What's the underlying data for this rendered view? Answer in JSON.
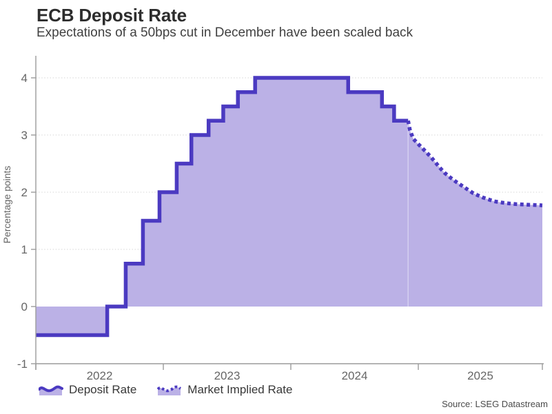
{
  "chart_data": {
    "type": "area",
    "title": "ECB Deposit Rate",
    "subtitle": "Expectations of a 50bps cut in December have been scaled back",
    "ylabel": "Percentage points",
    "source": "Source: LSEG Datastream",
    "x_range": [
      2022.0,
      2025.973
    ],
    "ylim": [
      -1,
      4.38
    ],
    "ytick_values": [
      -1,
      0,
      1,
      2,
      3,
      4
    ],
    "ytick_labels": [
      "-1",
      "0",
      "1",
      "2",
      "3",
      "4"
    ],
    "grid_ticks": [
      1,
      2,
      3,
      4
    ],
    "xtick_values": [
      2022,
      2023,
      2024,
      2025,
      2025.973
    ],
    "xlabels": [
      "2022",
      "2023",
      "2024",
      "2025"
    ],
    "legend_position": "bottom-left",
    "grid": "dotted-horizontal",
    "colors": {
      "line": "#4b3ac1",
      "fill": "#bbb1e6",
      "grid": "#d6d6d6",
      "axis": "#9b9b9b",
      "tick_text": "#666666"
    },
    "series": [
      {
        "name": "Deposit Rate",
        "line_style": "solid",
        "interpolation": "step-after",
        "points": [
          [
            2022.0,
            -0.5
          ],
          [
            2022.56,
            0.0
          ],
          [
            2022.705,
            0.75
          ],
          [
            2022.84,
            1.5
          ],
          [
            2022.97,
            2.0
          ],
          [
            2023.105,
            2.5
          ],
          [
            2023.22,
            3.0
          ],
          [
            2023.355,
            3.25
          ],
          [
            2023.47,
            3.5
          ],
          [
            2023.585,
            3.75
          ],
          [
            2023.72,
            4.0
          ],
          [
            2024.45,
            3.75
          ],
          [
            2024.715,
            3.5
          ],
          [
            2024.81,
            3.25
          ],
          [
            2024.92,
            3.25
          ]
        ]
      },
      {
        "name": "Market Implied Rate",
        "line_style": "dotted",
        "interpolation": "linear",
        "points": [
          [
            2024.92,
            3.25
          ],
          [
            2024.935,
            3.08
          ],
          [
            2024.962,
            2.93
          ],
          [
            2025.005,
            2.83
          ],
          [
            2025.054,
            2.72
          ],
          [
            2025.097,
            2.62
          ],
          [
            2025.135,
            2.52
          ],
          [
            2025.168,
            2.43
          ],
          [
            2025.205,
            2.34
          ],
          [
            2025.249,
            2.26
          ],
          [
            2025.297,
            2.18
          ],
          [
            2025.351,
            2.1
          ],
          [
            2025.432,
            1.98
          ],
          [
            2025.503,
            1.91
          ],
          [
            2025.595,
            1.84
          ],
          [
            2025.681,
            1.81
          ],
          [
            2025.773,
            1.79
          ],
          [
            2025.865,
            1.78
          ],
          [
            2025.973,
            1.77
          ]
        ]
      }
    ]
  }
}
